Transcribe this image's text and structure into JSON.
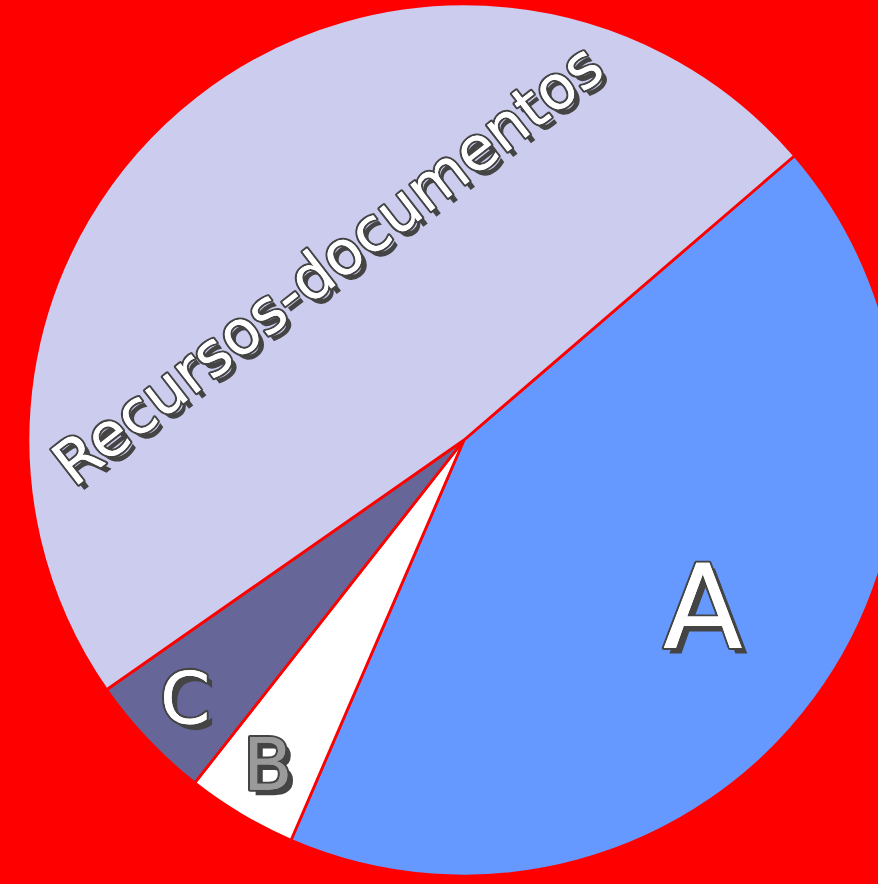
{
  "chart_data": {
    "type": "pie",
    "categories": [
      "A",
      "B",
      "C",
      "Recursos-documentos"
    ],
    "values": [
      42.8,
      4.1,
      4.7,
      48.4
    ],
    "colors": [
      "#6699ff",
      "#ffffff",
      "#666699",
      "#ccccee"
    ]
  }
}
